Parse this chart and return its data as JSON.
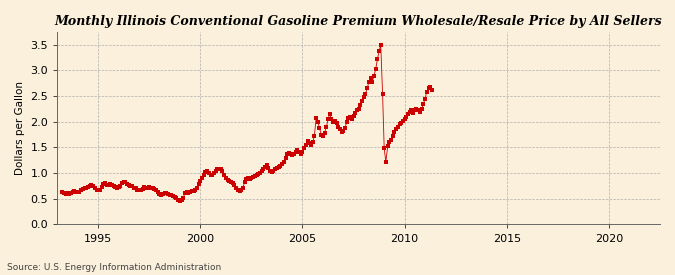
{
  "title": "Monthly Illinois Conventional Gasoline Premium Wholesale/Resale Price by All Sellers",
  "ylabel": "Dollars per Gallon",
  "source": "Source: U.S. Energy Information Administration",
  "background_color": "#FAF0DC",
  "marker_color": "#CC0000",
  "xlim_start": 1993.0,
  "xlim_end": 2022.5,
  "ylim": [
    0.0,
    3.75
  ],
  "yticks": [
    0.0,
    0.5,
    1.0,
    1.5,
    2.0,
    2.5,
    3.0,
    3.5
  ],
  "xticks": [
    1995,
    2000,
    2005,
    2010,
    2015,
    2020
  ],
  "data": [
    [
      1993.25,
      0.64
    ],
    [
      1993.33,
      0.61
    ],
    [
      1993.42,
      0.6
    ],
    [
      1993.5,
      0.61
    ],
    [
      1993.58,
      0.59
    ],
    [
      1993.67,
      0.62
    ],
    [
      1993.75,
      0.64
    ],
    [
      1993.83,
      0.65
    ],
    [
      1993.92,
      0.63
    ],
    [
      1994.0,
      0.64
    ],
    [
      1994.08,
      0.64
    ],
    [
      1994.17,
      0.67
    ],
    [
      1994.25,
      0.7
    ],
    [
      1994.33,
      0.72
    ],
    [
      1994.42,
      0.72
    ],
    [
      1994.5,
      0.73
    ],
    [
      1994.58,
      0.75
    ],
    [
      1994.67,
      0.77
    ],
    [
      1994.75,
      0.74
    ],
    [
      1994.83,
      0.72
    ],
    [
      1994.92,
      0.68
    ],
    [
      1995.0,
      0.67
    ],
    [
      1995.08,
      0.68
    ],
    [
      1995.17,
      0.73
    ],
    [
      1995.25,
      0.78
    ],
    [
      1995.33,
      0.8
    ],
    [
      1995.42,
      0.76
    ],
    [
      1995.5,
      0.76
    ],
    [
      1995.58,
      0.78
    ],
    [
      1995.67,
      0.76
    ],
    [
      1995.75,
      0.74
    ],
    [
      1995.83,
      0.73
    ],
    [
      1995.92,
      0.72
    ],
    [
      1996.0,
      0.73
    ],
    [
      1996.08,
      0.74
    ],
    [
      1996.17,
      0.8
    ],
    [
      1996.25,
      0.83
    ],
    [
      1996.33,
      0.82
    ],
    [
      1996.42,
      0.78
    ],
    [
      1996.5,
      0.76
    ],
    [
      1996.58,
      0.75
    ],
    [
      1996.67,
      0.74
    ],
    [
      1996.75,
      0.72
    ],
    [
      1996.83,
      0.71
    ],
    [
      1996.92,
      0.68
    ],
    [
      1997.0,
      0.67
    ],
    [
      1997.08,
      0.68
    ],
    [
      1997.17,
      0.7
    ],
    [
      1997.25,
      0.73
    ],
    [
      1997.33,
      0.72
    ],
    [
      1997.42,
      0.72
    ],
    [
      1997.5,
      0.73
    ],
    [
      1997.58,
      0.72
    ],
    [
      1997.67,
      0.71
    ],
    [
      1997.75,
      0.7
    ],
    [
      1997.83,
      0.68
    ],
    [
      1997.92,
      0.64
    ],
    [
      1998.0,
      0.6
    ],
    [
      1998.08,
      0.58
    ],
    [
      1998.17,
      0.6
    ],
    [
      1998.25,
      0.62
    ],
    [
      1998.33,
      0.62
    ],
    [
      1998.42,
      0.6
    ],
    [
      1998.5,
      0.58
    ],
    [
      1998.58,
      0.57
    ],
    [
      1998.67,
      0.55
    ],
    [
      1998.75,
      0.53
    ],
    [
      1998.83,
      0.52
    ],
    [
      1998.92,
      0.48
    ],
    [
      1999.0,
      0.46
    ],
    [
      1999.08,
      0.47
    ],
    [
      1999.17,
      0.52
    ],
    [
      1999.25,
      0.62
    ],
    [
      1999.33,
      0.64
    ],
    [
      1999.42,
      0.62
    ],
    [
      1999.5,
      0.63
    ],
    [
      1999.58,
      0.66
    ],
    [
      1999.67,
      0.66
    ],
    [
      1999.75,
      0.68
    ],
    [
      1999.83,
      0.72
    ],
    [
      1999.92,
      0.78
    ],
    [
      2000.0,
      0.84
    ],
    [
      2000.08,
      0.9
    ],
    [
      2000.17,
      0.96
    ],
    [
      2000.25,
      1.02
    ],
    [
      2000.33,
      1.05
    ],
    [
      2000.42,
      1.0
    ],
    [
      2000.5,
      0.96
    ],
    [
      2000.58,
      0.97
    ],
    [
      2000.67,
      1.01
    ],
    [
      2000.75,
      1.04
    ],
    [
      2000.83,
      1.08
    ],
    [
      2000.92,
      1.09
    ],
    [
      2001.0,
      1.08
    ],
    [
      2001.08,
      1.05
    ],
    [
      2001.17,
      0.96
    ],
    [
      2001.25,
      0.9
    ],
    [
      2001.33,
      0.87
    ],
    [
      2001.42,
      0.84
    ],
    [
      2001.5,
      0.82
    ],
    [
      2001.58,
      0.81
    ],
    [
      2001.67,
      0.77
    ],
    [
      2001.75,
      0.72
    ],
    [
      2001.83,
      0.68
    ],
    [
      2001.92,
      0.65
    ],
    [
      2002.0,
      0.67
    ],
    [
      2002.08,
      0.72
    ],
    [
      2002.17,
      0.82
    ],
    [
      2002.25,
      0.88
    ],
    [
      2002.33,
      0.9
    ],
    [
      2002.42,
      0.88
    ],
    [
      2002.5,
      0.9
    ],
    [
      2002.58,
      0.92
    ],
    [
      2002.67,
      0.94
    ],
    [
      2002.75,
      0.96
    ],
    [
      2002.83,
      0.98
    ],
    [
      2002.92,
      1.0
    ],
    [
      2003.0,
      1.05
    ],
    [
      2003.08,
      1.08
    ],
    [
      2003.17,
      1.12
    ],
    [
      2003.25,
      1.15
    ],
    [
      2003.33,
      1.1
    ],
    [
      2003.42,
      1.05
    ],
    [
      2003.5,
      1.02
    ],
    [
      2003.58,
      1.04
    ],
    [
      2003.67,
      1.08
    ],
    [
      2003.75,
      1.1
    ],
    [
      2003.83,
      1.12
    ],
    [
      2003.92,
      1.14
    ],
    [
      2004.0,
      1.18
    ],
    [
      2004.08,
      1.22
    ],
    [
      2004.17,
      1.3
    ],
    [
      2004.25,
      1.38
    ],
    [
      2004.33,
      1.4
    ],
    [
      2004.42,
      1.38
    ],
    [
      2004.5,
      1.36
    ],
    [
      2004.58,
      1.38
    ],
    [
      2004.67,
      1.42
    ],
    [
      2004.75,
      1.45
    ],
    [
      2004.83,
      1.42
    ],
    [
      2004.92,
      1.38
    ],
    [
      2005.0,
      1.42
    ],
    [
      2005.08,
      1.48
    ],
    [
      2005.17,
      1.55
    ],
    [
      2005.25,
      1.62
    ],
    [
      2005.33,
      1.58
    ],
    [
      2005.42,
      1.55
    ],
    [
      2005.5,
      1.6
    ],
    [
      2005.58,
      1.72
    ],
    [
      2005.67,
      2.08
    ],
    [
      2005.75,
      2.0
    ],
    [
      2005.83,
      1.88
    ],
    [
      2005.92,
      1.75
    ],
    [
      2006.0,
      1.72
    ],
    [
      2006.08,
      1.78
    ],
    [
      2006.17,
      1.9
    ],
    [
      2006.25,
      2.05
    ],
    [
      2006.33,
      2.15
    ],
    [
      2006.42,
      2.05
    ],
    [
      2006.5,
      2.0
    ],
    [
      2006.58,
      2.02
    ],
    [
      2006.67,
      1.98
    ],
    [
      2006.75,
      1.9
    ],
    [
      2006.83,
      1.85
    ],
    [
      2006.92,
      1.8
    ],
    [
      2007.0,
      1.82
    ],
    [
      2007.08,
      1.88
    ],
    [
      2007.17,
      2.0
    ],
    [
      2007.25,
      2.08
    ],
    [
      2007.33,
      2.1
    ],
    [
      2007.42,
      2.05
    ],
    [
      2007.5,
      2.12
    ],
    [
      2007.58,
      2.18
    ],
    [
      2007.67,
      2.22
    ],
    [
      2007.75,
      2.25
    ],
    [
      2007.83,
      2.32
    ],
    [
      2007.92,
      2.4
    ],
    [
      2008.0,
      2.48
    ],
    [
      2008.08,
      2.55
    ],
    [
      2008.17,
      2.65
    ],
    [
      2008.25,
      2.78
    ],
    [
      2008.33,
      2.85
    ],
    [
      2008.42,
      2.78
    ],
    [
      2008.5,
      2.9
    ],
    [
      2008.58,
      3.02
    ],
    [
      2008.67,
      3.22
    ],
    [
      2008.75,
      3.38
    ],
    [
      2008.83,
      3.5
    ],
    [
      2008.92,
      2.55
    ],
    [
      2009.0,
      1.48
    ],
    [
      2009.08,
      1.22
    ],
    [
      2009.17,
      1.52
    ],
    [
      2009.25,
      1.6
    ],
    [
      2009.33,
      1.65
    ],
    [
      2009.42,
      1.72
    ],
    [
      2009.5,
      1.8
    ],
    [
      2009.58,
      1.85
    ],
    [
      2009.67,
      1.9
    ],
    [
      2009.75,
      1.95
    ],
    [
      2009.83,
      1.98
    ],
    [
      2009.92,
      2.02
    ],
    [
      2010.0,
      2.05
    ],
    [
      2010.08,
      2.1
    ],
    [
      2010.17,
      2.15
    ],
    [
      2010.25,
      2.2
    ],
    [
      2010.33,
      2.22
    ],
    [
      2010.42,
      2.18
    ],
    [
      2010.5,
      2.22
    ],
    [
      2010.58,
      2.25
    ],
    [
      2010.67,
      2.22
    ],
    [
      2010.75,
      2.2
    ],
    [
      2010.83,
      2.25
    ],
    [
      2010.92,
      2.35
    ],
    [
      2011.0,
      2.45
    ],
    [
      2011.08,
      2.58
    ],
    [
      2011.17,
      2.65
    ],
    [
      2011.25,
      2.68
    ],
    [
      2011.33,
      2.62
    ]
  ]
}
